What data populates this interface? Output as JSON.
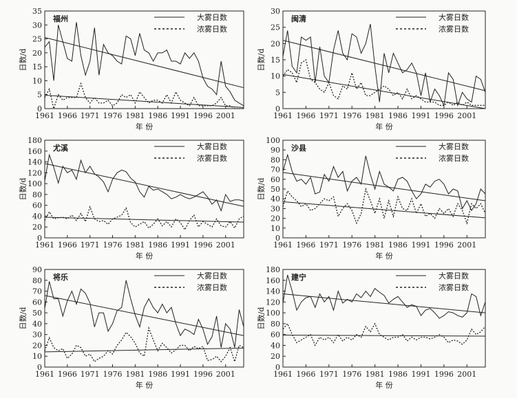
{
  "figure": {
    "background": "#fafaf8",
    "ink": "#222222"
  },
  "legend": {
    "heavy_label": "大雾日数",
    "dense_label": "浓雾日数"
  },
  "chart_data": [
    {
      "type": "line",
      "title": "福州",
      "xlabel": "年 份",
      "ylabel": "日数/d",
      "xlim": [
        1961,
        2005
      ],
      "ylim": [
        0,
        35
      ],
      "ytick_step": 5,
      "xticks": [
        1961,
        1966,
        1971,
        1976,
        1981,
        1986,
        1991,
        1996,
        2001
      ],
      "heavy": [
        22,
        24,
        10,
        30,
        24,
        18,
        17,
        31,
        19,
        12,
        17,
        29,
        12,
        23,
        20,
        19,
        17,
        16,
        26,
        25,
        19,
        27,
        21,
        20,
        17,
        20,
        20,
        21,
        17,
        17,
        16,
        20,
        18,
        20,
        17,
        11,
        8,
        7,
        5,
        17,
        8,
        6,
        3,
        2,
        1
      ],
      "dense": [
        4,
        7,
        0,
        5,
        3,
        4,
        4,
        4,
        9,
        4,
        2,
        4,
        2,
        2,
        3,
        1,
        2,
        5,
        4,
        5,
        2,
        6,
        4,
        2,
        3,
        3,
        2,
        5,
        2,
        6,
        3,
        2,
        1,
        4,
        1,
        1,
        1,
        1,
        2,
        4,
        1,
        1,
        0,
        0,
        0
      ],
      "heavy_trend": [
        25.5,
        7.5
      ],
      "dense_trend": [
        4.8,
        0.4
      ],
      "series": [
        {
          "name": "大雾日数"
        },
        {
          "name": "浓雾日数"
        }
      ]
    },
    {
      "type": "line",
      "title": "闽清",
      "xlabel": "年 份",
      "ylabel": "日数/d",
      "xlim": [
        1961,
        2005
      ],
      "ylim": [
        0,
        30
      ],
      "ytick_step": 5,
      "xticks": [
        1961,
        1966,
        1971,
        1976,
        1981,
        1986,
        1991,
        1996,
        2001
      ],
      "heavy": [
        16,
        24,
        13,
        11,
        22,
        21,
        22,
        8,
        19,
        10,
        8,
        18,
        24,
        17,
        15,
        23,
        22,
        17,
        20,
        26,
        13,
        2,
        17,
        11,
        17,
        14,
        11,
        12,
        14,
        11,
        4,
        11,
        2,
        6,
        4,
        1,
        11,
        9,
        1,
        5,
        3,
        2,
        10,
        9,
        5
      ],
      "dense": [
        10,
        12,
        11,
        8,
        14,
        15,
        9,
        8,
        6,
        5,
        8,
        4,
        3,
        7,
        6,
        11,
        6,
        8,
        4,
        4,
        5,
        6,
        7,
        6,
        4,
        5,
        3,
        6,
        3,
        4,
        3,
        2,
        2,
        2,
        1,
        1,
        2,
        1,
        2,
        1,
        2,
        1,
        1,
        1,
        1
      ],
      "heavy_trend": [
        21,
        5.5
      ],
      "dense_trend": [
        10.5,
        0
      ],
      "series": [
        {
          "name": "大雾日数"
        },
        {
          "name": "浓雾日数"
        }
      ]
    },
    {
      "type": "line",
      "title": "尤溪",
      "xlabel": "年 份",
      "ylabel": "日数/d",
      "xlim": [
        1961,
        2005
      ],
      "ylim": [
        0,
        180
      ],
      "ytick_step": 20,
      "xticks": [
        1961,
        1966,
        1971,
        1976,
        1981,
        1986,
        1991,
        1996,
        2001
      ],
      "heavy": [
        105,
        153,
        130,
        101,
        132,
        120,
        125,
        108,
        143,
        120,
        132,
        118,
        112,
        103,
        85,
        108,
        120,
        125,
        122,
        110,
        103,
        85,
        75,
        95,
        88,
        90,
        85,
        80,
        72,
        75,
        80,
        75,
        72,
        75,
        80,
        85,
        75,
        62,
        70,
        50,
        80,
        67,
        70,
        70,
        68
      ],
      "dense": [
        32,
        48,
        35,
        37,
        38,
        35,
        42,
        32,
        45,
        30,
        57,
        35,
        30,
        32,
        25,
        35,
        38,
        42,
        55,
        28,
        20,
        25,
        30,
        18,
        25,
        35,
        22,
        30,
        20,
        35,
        28,
        15,
        32,
        42,
        20,
        30,
        25,
        20,
        35,
        22,
        20,
        30,
        18,
        35,
        40
      ],
      "heavy_trend": [
        137,
        58
      ],
      "dense_trend": [
        38,
        29
      ],
      "series": [
        {
          "name": "大雾日数"
        },
        {
          "name": "浓雾日数"
        }
      ]
    },
    {
      "type": "line",
      "title": "沙县",
      "xlabel": "年 份",
      "ylabel": "日数/d",
      "xlim": [
        1961,
        2005
      ],
      "ylim": [
        0,
        100
      ],
      "ytick_step": 10,
      "xticks": [
        1961,
        1966,
        1971,
        1976,
        1981,
        1986,
        1991,
        1996,
        2001
      ],
      "heavy": [
        68,
        85,
        68,
        58,
        60,
        55,
        62,
        45,
        47,
        65,
        58,
        73,
        62,
        68,
        48,
        58,
        62,
        55,
        84,
        65,
        50,
        68,
        55,
        52,
        48,
        60,
        62,
        58,
        48,
        40,
        45,
        55,
        52,
        58,
        60,
        55,
        45,
        50,
        48,
        30,
        38,
        28,
        35,
        50,
        45
      ],
      "dense": [
        32,
        48,
        42,
        38,
        32,
        35,
        28,
        30,
        35,
        40,
        38,
        42,
        22,
        30,
        35,
        28,
        15,
        25,
        50,
        38,
        25,
        40,
        20,
        38,
        22,
        42,
        30,
        28,
        40,
        25,
        35,
        22,
        25,
        20,
        30,
        25,
        30,
        22,
        35,
        28,
        15,
        35,
        30,
        35,
        25
      ],
      "heavy_trend": [
        67,
        38
      ],
      "dense_trend": [
        37,
        20.5
      ],
      "series": [
        {
          "name": "大雾日数"
        },
        {
          "name": "浓雾日数"
        }
      ]
    },
    {
      "type": "line",
      "title": "将乐",
      "xlabel": "年 份",
      "ylabel": "日数/d",
      "xlim": [
        1961,
        2005
      ],
      "ylim": [
        0,
        90
      ],
      "ytick_step": 10,
      "xticks": [
        1961,
        1966,
        1971,
        1976,
        1981,
        1986,
        1991,
        1996,
        2001
      ],
      "heavy": [
        54,
        79,
        63,
        63,
        47,
        61,
        70,
        58,
        72,
        68,
        59,
        37,
        50,
        50,
        33,
        40,
        52,
        55,
        80,
        63,
        48,
        37,
        55,
        63,
        55,
        50,
        58,
        50,
        55,
        40,
        29,
        35,
        33,
        30,
        44,
        35,
        21,
        28,
        47,
        18,
        40,
        35,
        18,
        53,
        37
      ],
      "dense": [
        15,
        27,
        18,
        15,
        17,
        8,
        12,
        20,
        18,
        10,
        12,
        5,
        8,
        10,
        15,
        12,
        20,
        25,
        32,
        28,
        22,
        13,
        10,
        36,
        25,
        15,
        22,
        18,
        13,
        16,
        20,
        20,
        15,
        19,
        17,
        19,
        6,
        7,
        10,
        5,
        10,
        18,
        5,
        20,
        18
      ],
      "heavy_trend": [
        66,
        29
      ],
      "dense_trend": [
        14,
        17.5
      ],
      "series": [
        {
          "name": "大雾日数"
        },
        {
          "name": "浓雾日数"
        }
      ]
    },
    {
      "type": "line",
      "title": "建宁",
      "xlabel": "年 份",
      "ylabel": "日数/d",
      "xlim": [
        1961,
        2005
      ],
      "ylim": [
        0,
        180
      ],
      "ytick_step": 20,
      "xticks": [
        1961,
        1966,
        1971,
        1976,
        1981,
        1986,
        1991,
        1996,
        2001
      ],
      "heavy": [
        118,
        170,
        140,
        105,
        120,
        128,
        130,
        110,
        135,
        120,
        130,
        105,
        140,
        118,
        125,
        120,
        135,
        128,
        140,
        130,
        145,
        138,
        132,
        118,
        125,
        130,
        120,
        110,
        115,
        112,
        95,
        105,
        108,
        100,
        90,
        95,
        102,
        100,
        95,
        92,
        100,
        135,
        130,
        95,
        120
      ],
      "dense": [
        70,
        80,
        60,
        45,
        50,
        55,
        60,
        40,
        55,
        50,
        55,
        45,
        60,
        48,
        55,
        50,
        60,
        55,
        75,
        65,
        80,
        60,
        55,
        50,
        55,
        55,
        60,
        48,
        55,
        50,
        55,
        55,
        52,
        55,
        60,
        55,
        45,
        50,
        48,
        42,
        50,
        70,
        60,
        65,
        75
      ],
      "heavy_trend": [
        135,
        100
      ],
      "dense_trend": [
        59,
        57
      ],
      "series": [
        {
          "name": "大雾日数"
        },
        {
          "name": "浓雾日数"
        }
      ]
    }
  ]
}
